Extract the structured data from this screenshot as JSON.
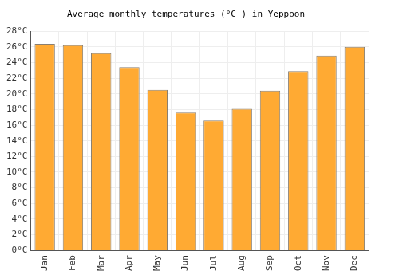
{
  "chart_data": {
    "type": "bar",
    "title": "Average monthly temperatures (°C ) in Yeppoon",
    "categories": [
      "Jan",
      "Feb",
      "Mar",
      "Apr",
      "May",
      "Jun",
      "Jul",
      "Aug",
      "Sep",
      "Oct",
      "Nov",
      "Dec"
    ],
    "values": [
      26.4,
      26.2,
      25.2,
      23.4,
      20.5,
      17.6,
      16.6,
      18.1,
      20.4,
      22.9,
      24.9,
      26.0
    ],
    "color": "#ffaa33",
    "ylim": [
      0,
      28
    ],
    "yticks": [
      {
        "value": 0,
        "label": "0°C"
      },
      {
        "value": 2,
        "label": "2°C"
      },
      {
        "value": 4,
        "label": "4°C"
      },
      {
        "value": 6,
        "label": "6°C"
      },
      {
        "value": 8,
        "label": "8°C"
      },
      {
        "value": 10,
        "label": "10°C"
      },
      {
        "value": 12,
        "label": "12°C"
      },
      {
        "value": 14,
        "label": "14°C"
      },
      {
        "value": 16,
        "label": "16°C"
      },
      {
        "value": 18,
        "label": "18°C"
      },
      {
        "value": 20,
        "label": "20°C"
      },
      {
        "value": 22,
        "label": "22°C"
      },
      {
        "value": 24,
        "label": "24°C"
      },
      {
        "value": 26,
        "label": "26°C"
      },
      {
        "value": 28,
        "label": "28°C"
      }
    ],
    "grid": true
  }
}
